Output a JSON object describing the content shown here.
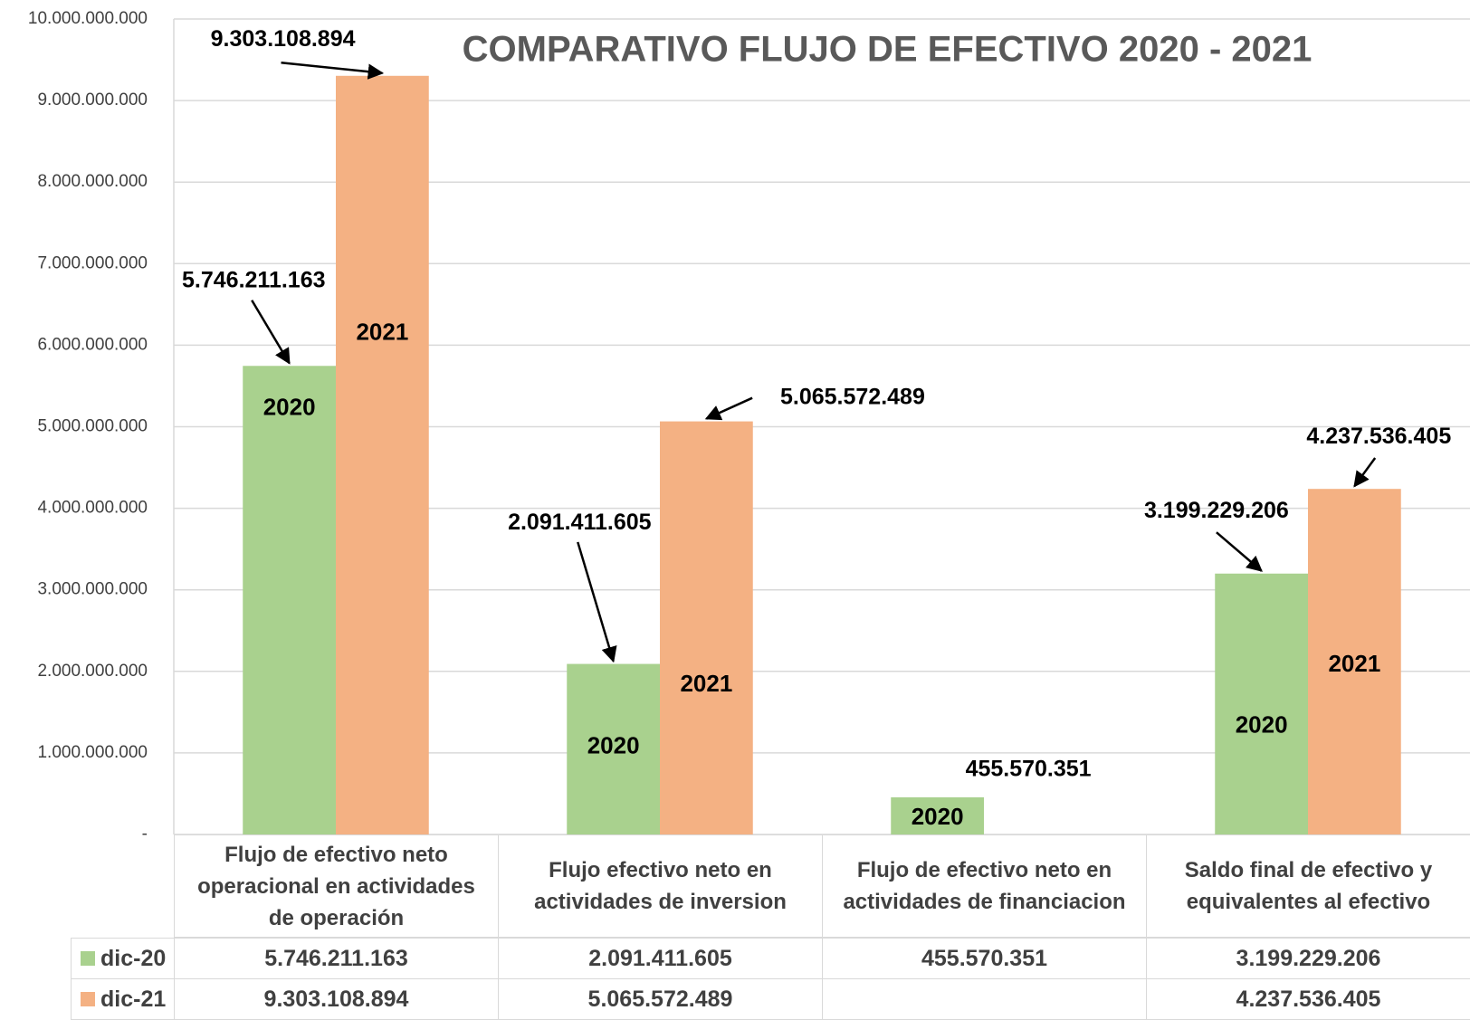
{
  "chart_data": {
    "type": "bar",
    "title": "COMPARATIVO FLUJO DE EFECTIVO 2020 - 2021",
    "categories": [
      "Flujo de efectivo neto operacional en actividades de operación",
      "Flujo efectivo neto en actividades de inversion",
      "Flujo de efectivo neto en actividades de financiacion",
      "Saldo final de efectivo y equivalentes al efectivo"
    ],
    "series": [
      {
        "name": "dic-20",
        "color": "#a9d18e",
        "bar_label": "2020",
        "values": [
          5746211163,
          2091411605,
          455570351,
          3199229206
        ],
        "value_labels": [
          "5.746.211.163",
          "2.091.411.605",
          "455.570.351",
          "3.199.229.206"
        ]
      },
      {
        "name": "dic-21",
        "color": "#f4b183",
        "bar_label": "2021",
        "values": [
          9303108894,
          5065572489,
          null,
          4237536405
        ],
        "value_labels": [
          "9.303.108.894",
          "5.065.572.489",
          null,
          "4.237.536.405"
        ]
      }
    ],
    "ylim": [
      0,
      10000000000
    ],
    "yticks": [
      {
        "value": 0,
        "label": "-"
      },
      {
        "value": 1000000000,
        "label": "1.000.000.000"
      },
      {
        "value": 2000000000,
        "label": "2.000.000.000"
      },
      {
        "value": 3000000000,
        "label": "3.000.000.000"
      },
      {
        "value": 4000000000,
        "label": "4.000.000.000"
      },
      {
        "value": 5000000000,
        "label": "5.000.000.000"
      },
      {
        "value": 6000000000,
        "label": "6.000.000.000"
      },
      {
        "value": 7000000000,
        "label": "7.000.000.000"
      },
      {
        "value": 8000000000,
        "label": "8.000.000.000"
      },
      {
        "value": 9000000000,
        "label": "9.000.000.000"
      },
      {
        "value": 10000000000,
        "label": "10.000.000.000"
      }
    ],
    "grid": true
  }
}
